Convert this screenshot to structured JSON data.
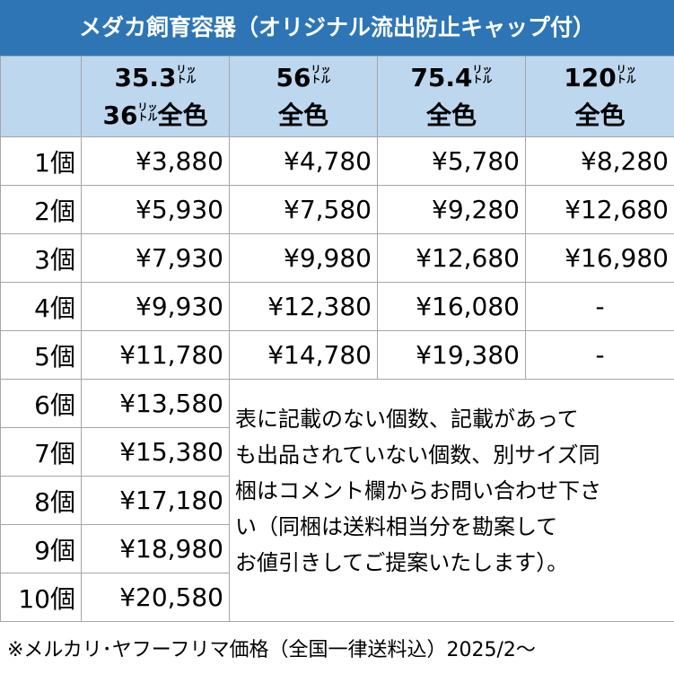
{
  "title": "メダカ飼育容器（オリジナル流出防止キャップ付）",
  "table": {
    "columns": [
      {
        "line1": {
          "size": "35.3",
          "unit": [
            "リッ",
            "トル"
          ]
        },
        "line2": {
          "size": "36",
          "unit": [
            "リッ",
            "トル"
          ],
          "text": "全色"
        }
      },
      {
        "line1": {
          "size": "56",
          "unit": [
            "リッ",
            "トル"
          ]
        },
        "line2": {
          "text": "全色"
        }
      },
      {
        "line1": {
          "size": "75.4",
          "unit": [
            "リッ",
            "トル"
          ]
        },
        "line2": {
          "text": "全色"
        }
      },
      {
        "line1": {
          "size": "120",
          "unit": [
            "リッ",
            "トル"
          ]
        },
        "line2": {
          "text": "全色"
        }
      }
    ],
    "rows": [
      [
        "1個",
        "¥3,880",
        "¥4,780",
        "¥5,780",
        "¥8,280"
      ],
      [
        "2個",
        "¥5,930",
        "¥7,580",
        "¥9,280",
        "¥12,680"
      ],
      [
        "3個",
        "¥7,930",
        "¥9,980",
        "¥12,680",
        "¥16,980"
      ],
      [
        "4個",
        "¥9,930",
        "¥12,380",
        "¥16,080",
        "-"
      ],
      [
        "5個",
        "¥11,780",
        "¥14,780",
        "¥19,380",
        "-"
      ],
      [
        "6個",
        "¥13,580"
      ],
      [
        "7個",
        "¥15,380"
      ],
      [
        "8個",
        "¥17,180"
      ],
      [
        "9個",
        "¥18,980"
      ],
      [
        "10個",
        "¥20,580"
      ]
    ],
    "note": [
      "表に記載のない個数、記載があって",
      "も出品されていない個数、別サイズ同",
      "梱はコメント欄からお問い合わせ下さ",
      "い（同梱は送料相当分を勘案して",
      "お値引きしてご提案いたします）。"
    ]
  },
  "footer": "※メルカリ･ヤフーフリマ価格（全国一律送料込）2025/2～"
}
